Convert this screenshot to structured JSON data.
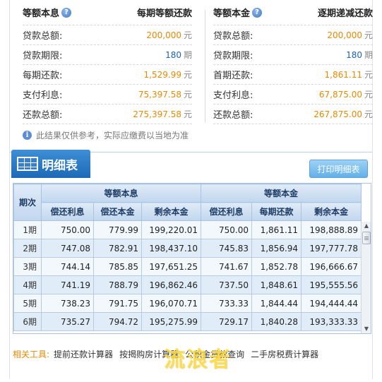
{
  "summary": {
    "left": {
      "method": "等额本息",
      "plan": "每期等额还款",
      "rows": [
        {
          "label": "贷款总额:",
          "value": "200,000",
          "unit": "元"
        },
        {
          "label": "贷款期限:",
          "value": "180",
          "unit": "期"
        },
        {
          "label": "每期还款:",
          "value": "1,529.99",
          "unit": "元"
        },
        {
          "label": "支付利息:",
          "value": "75,397.58",
          "unit": "元"
        },
        {
          "label": "还款总额:",
          "value": "275,397.58",
          "unit": "元"
        }
      ]
    },
    "right": {
      "method": "等额本金",
      "plan": "逐期递减还款",
      "rows": [
        {
          "label": "贷款总额:",
          "value": "200,000",
          "unit": "元"
        },
        {
          "label": "贷款期限:",
          "value": "180",
          "unit": "期"
        },
        {
          "label": "首期还款:",
          "value": "1,861.11",
          "unit": "元"
        },
        {
          "label": "支付利息:",
          "value": "67,875.00",
          "unit": "元"
        },
        {
          "label": "还款总额:",
          "value": "267,875.00",
          "unit": "元"
        }
      ]
    },
    "note": "此结果仅供参考，实际应缴费以当地为准"
  },
  "detail": {
    "title": "明细表",
    "print_label": "打印明细表",
    "period_header": "期次",
    "group_a": "等额本息",
    "group_b": "等额本金",
    "cols": [
      "偿还利息",
      "偿还本金",
      "剩余本金",
      "偿还利息",
      "每期还款",
      "剩余本金"
    ],
    "rows": [
      {
        "period": "1期",
        "cells": [
          "750.00",
          "779.99",
          "199,220.01",
          "750.00",
          "1,861.11",
          "198,888.89"
        ]
      },
      {
        "period": "2期",
        "cells": [
          "747.08",
          "782.91",
          "198,437.10",
          "745.83",
          "1,856.94",
          "197,777.78"
        ]
      },
      {
        "period": "3期",
        "cells": [
          "744.14",
          "785.85",
          "197,651.25",
          "741.67",
          "1,852.78",
          "196,666.67"
        ]
      },
      {
        "period": "4期",
        "cells": [
          "741.19",
          "788.79",
          "196,862.46",
          "737.50",
          "1,848.61",
          "195,555.56"
        ]
      },
      {
        "period": "5期",
        "cells": [
          "738.23",
          "791.75",
          "196,070.71",
          "733.33",
          "1,844.44",
          "194,444.44"
        ]
      },
      {
        "period": "6期",
        "cells": [
          "735.27",
          "794.72",
          "195,275.99",
          "729.17",
          "1,840.28",
          "193,333.33"
        ]
      }
    ]
  },
  "tools": {
    "label": "相关工具:",
    "links": [
      "提前还款计算器",
      "按揭购房计算器",
      "公积金贷款查询",
      "二手房税费计算器"
    ]
  },
  "watermark": "流浪者",
  "colors": {
    "accent_orange": "#e68a00",
    "accent_blue": "#1a64b4",
    "tab_blue": "#1d69b7"
  }
}
